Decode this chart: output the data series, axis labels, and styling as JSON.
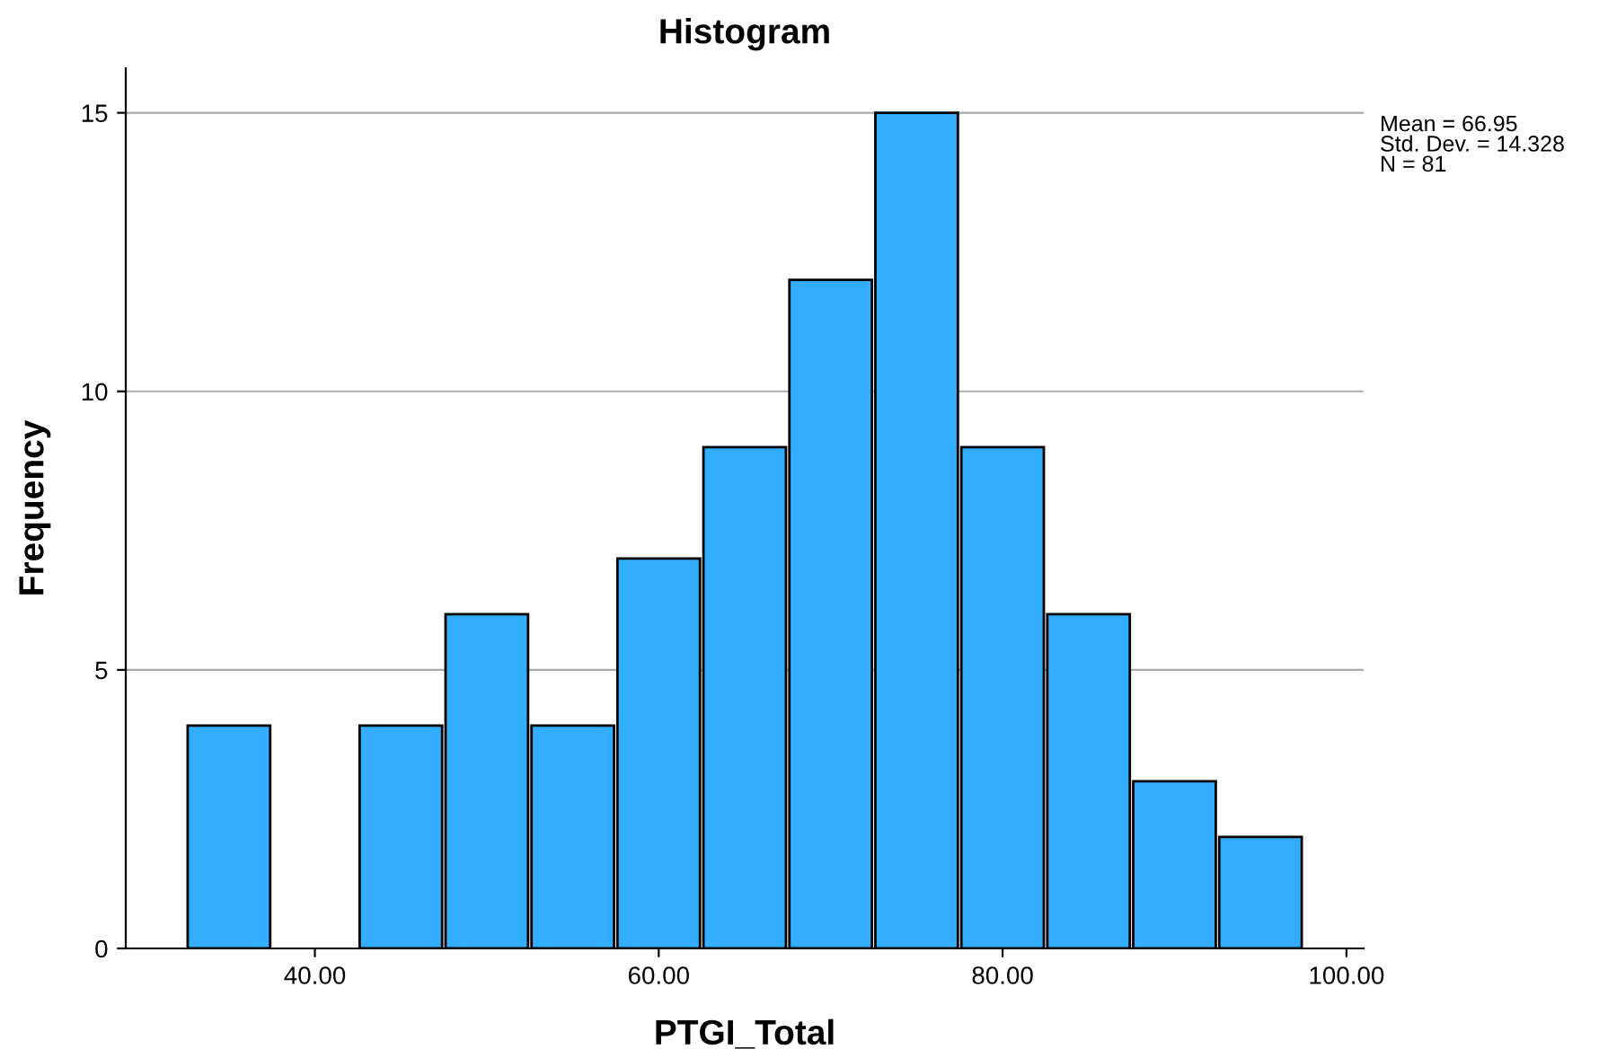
{
  "chart_data": {
    "type": "histogram",
    "title": "Histogram",
    "xlabel": "PTGI_Total",
    "ylabel": "Frequency",
    "bins": [
      32.5,
      37.5,
      42.5,
      47.5,
      52.5,
      57.5,
      62.5,
      67.5,
      72.5,
      77.5,
      82.5,
      87.5,
      92.5,
      97.5
    ],
    "values": [
      4,
      0,
      4,
      6,
      4,
      7,
      9,
      12,
      15,
      9,
      6,
      3,
      2
    ],
    "color": "#33adff",
    "xlim": [
      29,
      101
    ],
    "xticks": [
      {
        "value": 40,
        "label": "40.00"
      },
      {
        "value": 60,
        "label": "60.00"
      },
      {
        "value": 80,
        "label": "80.00"
      },
      {
        "value": 100,
        "label": "100.00"
      }
    ],
    "ylim": [
      0,
      15.8
    ],
    "yticks": [
      0,
      5,
      10,
      15
    ],
    "grid": "y",
    "annotations": [
      "Mean = 66.95\nStd. Dev. = 14.328\nN = 81"
    ]
  }
}
